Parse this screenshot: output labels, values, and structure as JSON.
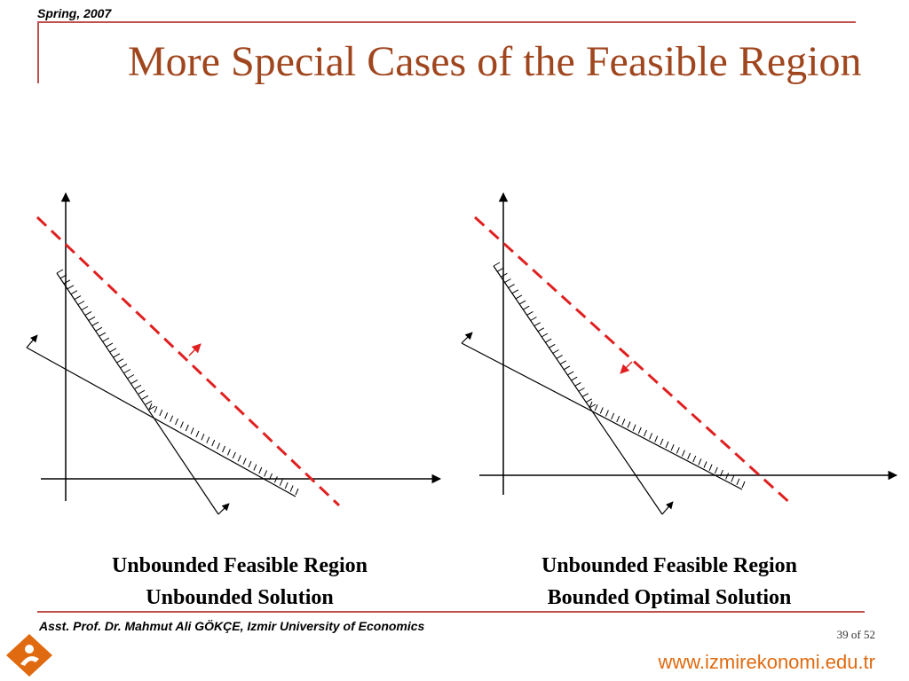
{
  "header": {
    "label": "Spring, 2007"
  },
  "title": "More Special Cases of the Feasible Region",
  "captions": {
    "left": [
      "Unbounded Feasible Region",
      "Unbounded Solution"
    ],
    "right": [
      "Unbounded Feasible Region",
      "Bounded Optimal Solution"
    ]
  },
  "footer": {
    "author": "Asst. Prof. Dr. Mahmut Ali GÖKÇE, Izmir University of Economics",
    "page_number": "39 of 52",
    "url": "www.izmirekonomi.edu.tr"
  },
  "colors": {
    "accent": "#c0504d",
    "title": "#a0461e",
    "objective_line": "#e02020",
    "url": "#e06a10"
  }
}
